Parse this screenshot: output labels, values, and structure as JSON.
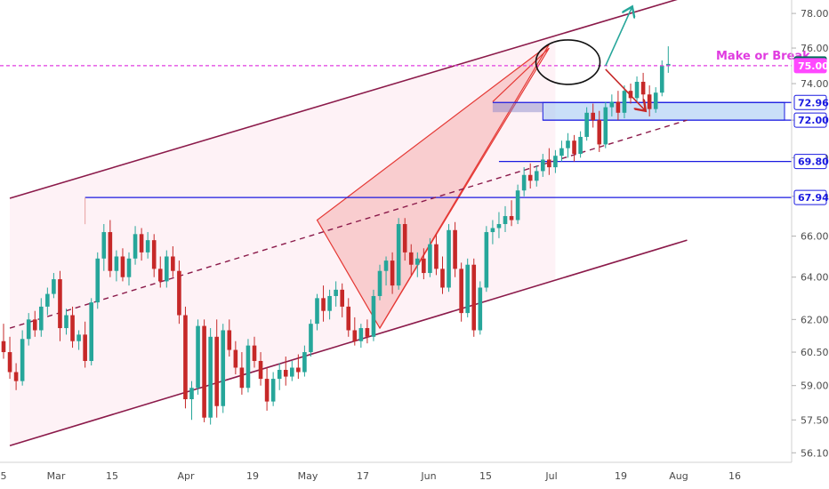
{
  "chart_data": {
    "type": "candlestick",
    "x_axis": {
      "tick_labels": [
        "5",
        "Mar",
        "15",
        "Apr",
        "19",
        "May",
        "17",
        "Jun",
        "15",
        "Jul",
        "19",
        "Aug",
        "16"
      ]
    },
    "y_axis": {
      "scale": "log",
      "range": [
        55.7,
        79.0
      ],
      "position": "right",
      "tick_labels": [
        "56.10",
        "57.50",
        "59.00",
        "60.50",
        "62.00",
        "64.00",
        "66.00",
        "68.00",
        "70.00",
        "72.00",
        "74.00",
        "76.00",
        "78.00"
      ]
    },
    "price_tags": [
      {
        "value": "75.10",
        "color": "#006b5b",
        "text_color": "#ffffff"
      },
      {
        "value": "75.00",
        "color": "#ff48ff",
        "text_color": "#ffffff"
      },
      {
        "value": "72.96",
        "color": "#ffffff",
        "text_color": "#1a1ae0",
        "border": "#1a1ae0"
      },
      {
        "value": "72.00",
        "color": "#ffffff",
        "text_color": "#1a1ae0",
        "border": "#1a1ae0"
      },
      {
        "value": "69.80",
        "color": "#ffffff",
        "text_color": "#1a1ae0",
        "border": "#1a1ae0"
      },
      {
        "value": "67.94",
        "color": "#ffffff",
        "text_color": "#1a1ae0",
        "border": "#1a1ae0"
      }
    ],
    "annotations": [
      {
        "text": "Make or Break",
        "color": "#e03ce0"
      }
    ],
    "levels": [
      75.0,
      72.96,
      72.0,
      69.8,
      67.94
    ],
    "colors": {
      "up": "#26a69a",
      "down": "#c62828",
      "channel": "#8b1a4a",
      "pattern": "#e53935",
      "levels": "#1a1ae0",
      "make_or_break": "#e03ce0"
    },
    "candles": [
      [
        61.0,
        61.8,
        60.2,
        60.5
      ],
      [
        60.5,
        61.2,
        59.3,
        59.6
      ],
      [
        59.6,
        60.0,
        58.8,
        59.2
      ],
      [
        59.2,
        61.5,
        59.0,
        61.1
      ],
      [
        61.1,
        62.3,
        60.8,
        62.0
      ],
      [
        62.0,
        62.4,
        61.2,
        61.5
      ],
      [
        61.5,
        63.0,
        61.2,
        62.6
      ],
      [
        62.6,
        63.5,
        62.2,
        63.2
      ],
      [
        63.2,
        64.2,
        63.0,
        63.9
      ],
      [
        63.9,
        64.3,
        61.0,
        61.6
      ],
      [
        61.6,
        62.5,
        61.3,
        62.2
      ],
      [
        62.2,
        62.6,
        60.7,
        61.0
      ],
      [
        61.0,
        61.5,
        60.6,
        61.3
      ],
      [
        61.3,
        61.9,
        59.8,
        60.1
      ],
      [
        60.1,
        63.0,
        59.9,
        62.8
      ],
      [
        62.8,
        65.2,
        62.5,
        64.9
      ],
      [
        64.9,
        66.6,
        64.3,
        66.2
      ],
      [
        66.2,
        66.8,
        64.0,
        64.3
      ],
      [
        64.3,
        65.3,
        63.8,
        65.0
      ],
      [
        65.0,
        65.4,
        63.8,
        64.0
      ],
      [
        64.0,
        65.2,
        63.6,
        64.9
      ],
      [
        64.9,
        66.5,
        64.6,
        66.1
      ],
      [
        66.1,
        66.4,
        64.8,
        65.2
      ],
      [
        65.2,
        66.2,
        64.9,
        65.8
      ],
      [
        65.8,
        66.1,
        64.0,
        64.4
      ],
      [
        64.4,
        65.0,
        63.5,
        63.8
      ],
      [
        63.8,
        65.3,
        63.5,
        65.0
      ],
      [
        65.0,
        65.5,
        64.0,
        64.3
      ],
      [
        64.3,
        64.8,
        61.8,
        62.2
      ],
      [
        62.2,
        62.6,
        58.0,
        58.4
      ],
      [
        58.4,
        59.2,
        57.5,
        58.9
      ],
      [
        58.9,
        62.0,
        58.6,
        61.7
      ],
      [
        61.7,
        62.0,
        57.4,
        57.6
      ],
      [
        57.6,
        61.6,
        57.3,
        61.2
      ],
      [
        61.2,
        62.0,
        57.6,
        58.1
      ],
      [
        58.1,
        61.8,
        57.8,
        61.5
      ],
      [
        61.5,
        62.0,
        60.3,
        60.6
      ],
      [
        60.6,
        61.0,
        59.5,
        59.8
      ],
      [
        59.8,
        60.5,
        58.6,
        58.9
      ],
      [
        58.9,
        61.1,
        58.7,
        60.8
      ],
      [
        60.8,
        61.2,
        59.8,
        60.1
      ],
      [
        60.1,
        60.5,
        59.0,
        59.3
      ],
      [
        59.3,
        59.8,
        57.9,
        58.3
      ],
      [
        58.3,
        59.6,
        58.1,
        59.3
      ],
      [
        59.3,
        60.0,
        58.8,
        59.7
      ],
      [
        59.7,
        60.3,
        59.0,
        59.4
      ],
      [
        59.4,
        60.1,
        59.2,
        59.8
      ],
      [
        59.8,
        60.4,
        59.3,
        59.6
      ],
      [
        59.6,
        60.8,
        59.4,
        60.5
      ],
      [
        60.5,
        62.0,
        60.3,
        61.8
      ],
      [
        61.8,
        63.2,
        61.5,
        63.0
      ],
      [
        63.0,
        63.6,
        61.9,
        62.4
      ],
      [
        62.4,
        63.4,
        62.0,
        63.1
      ],
      [
        63.1,
        63.8,
        62.6,
        63.4
      ],
      [
        63.4,
        63.7,
        62.1,
        62.6
      ],
      [
        62.6,
        63.0,
        61.2,
        61.5
      ],
      [
        61.5,
        62.1,
        60.8,
        61.0
      ],
      [
        61.0,
        61.8,
        60.7,
        61.6
      ],
      [
        61.6,
        62.0,
        60.9,
        61.2
      ],
      [
        61.2,
        63.4,
        61.0,
        63.1
      ],
      [
        63.1,
        64.6,
        62.9,
        64.3
      ],
      [
        64.3,
        65.0,
        63.6,
        64.8
      ],
      [
        64.8,
        65.2,
        63.2,
        63.6
      ],
      [
        63.6,
        66.9,
        63.4,
        66.6
      ],
      [
        66.6,
        66.9,
        64.8,
        65.2
      ],
      [
        65.2,
        65.6,
        64.1,
        64.6
      ],
      [
        64.6,
        65.2,
        64.0,
        64.9
      ],
      [
        64.9,
        65.4,
        63.9,
        64.2
      ],
      [
        64.2,
        65.9,
        64.0,
        65.6
      ],
      [
        65.6,
        66.1,
        64.1,
        64.4
      ],
      [
        64.4,
        65.0,
        63.2,
        63.5
      ],
      [
        63.5,
        66.6,
        63.3,
        66.3
      ],
      [
        66.3,
        66.7,
        64.0,
        64.4
      ],
      [
        64.4,
        64.7,
        61.9,
        62.3
      ],
      [
        62.3,
        64.9,
        62.1,
        64.6
      ],
      [
        64.6,
        64.9,
        61.2,
        61.5
      ],
      [
        61.5,
        63.8,
        61.3,
        63.5
      ],
      [
        63.5,
        66.5,
        63.3,
        66.2
      ],
      [
        66.2,
        66.8,
        65.6,
        66.4
      ],
      [
        66.4,
        67.2,
        65.9,
        66.6
      ],
      [
        66.6,
        67.5,
        66.2,
        67.0
      ],
      [
        67.0,
        67.8,
        66.5,
        66.8
      ],
      [
        66.8,
        68.6,
        66.6,
        68.3
      ],
      [
        68.3,
        69.5,
        68.0,
        69.1
      ],
      [
        69.1,
        69.7,
        68.4,
        68.8
      ],
      [
        68.8,
        69.6,
        68.5,
        69.3
      ],
      [
        69.3,
        70.2,
        69.0,
        69.9
      ],
      [
        69.9,
        70.5,
        69.1,
        69.5
      ],
      [
        69.5,
        70.4,
        69.2,
        70.1
      ],
      [
        70.1,
        70.9,
        69.8,
        70.5
      ],
      [
        70.5,
        71.3,
        70.0,
        70.9
      ],
      [
        70.9,
        71.2,
        69.8,
        70.2
      ],
      [
        70.2,
        71.4,
        70.0,
        71.1
      ],
      [
        71.1,
        72.7,
        70.9,
        72.4
      ],
      [
        72.4,
        72.9,
        71.6,
        72.0
      ],
      [
        72.0,
        72.5,
        70.3,
        70.7
      ],
      [
        70.7,
        73.0,
        70.5,
        72.7
      ],
      [
        72.7,
        73.4,
        72.2,
        73.0
      ],
      [
        73.0,
        73.6,
        72.0,
        72.4
      ],
      [
        72.4,
        73.9,
        72.1,
        73.6
      ],
      [
        73.6,
        74.0,
        72.9,
        73.2
      ],
      [
        73.2,
        74.4,
        73.0,
        74.1
      ],
      [
        74.1,
        74.6,
        73.0,
        73.4
      ],
      [
        73.4,
        73.9,
        72.2,
        72.6
      ],
      [
        72.6,
        73.8,
        72.4,
        73.5
      ],
      [
        73.5,
        75.3,
        73.3,
        75.0
      ],
      [
        75.0,
        76.1,
        74.6,
        75.1
      ]
    ],
    "channel": {
      "upper": [
        [
          1,
          67.9
        ],
        [
          109,
          79.0
        ]
      ],
      "lower": [
        [
          1,
          56.4
        ],
        [
          109,
          65.8
        ]
      ],
      "mid_dashed": [
        [
          1,
          61.6
        ],
        [
          109,
          72.0
        ]
      ]
    },
    "rising_wedge": {
      "outer": [
        [
          50,
          66.8
        ],
        [
          60,
          61.6
        ],
        [
          87,
          76.2
        ]
      ],
      "inner": [
        [
          60,
          61.6
        ],
        [
          87,
          76.0
        ],
        [
          78,
          73.0
        ]
      ]
    }
  }
}
